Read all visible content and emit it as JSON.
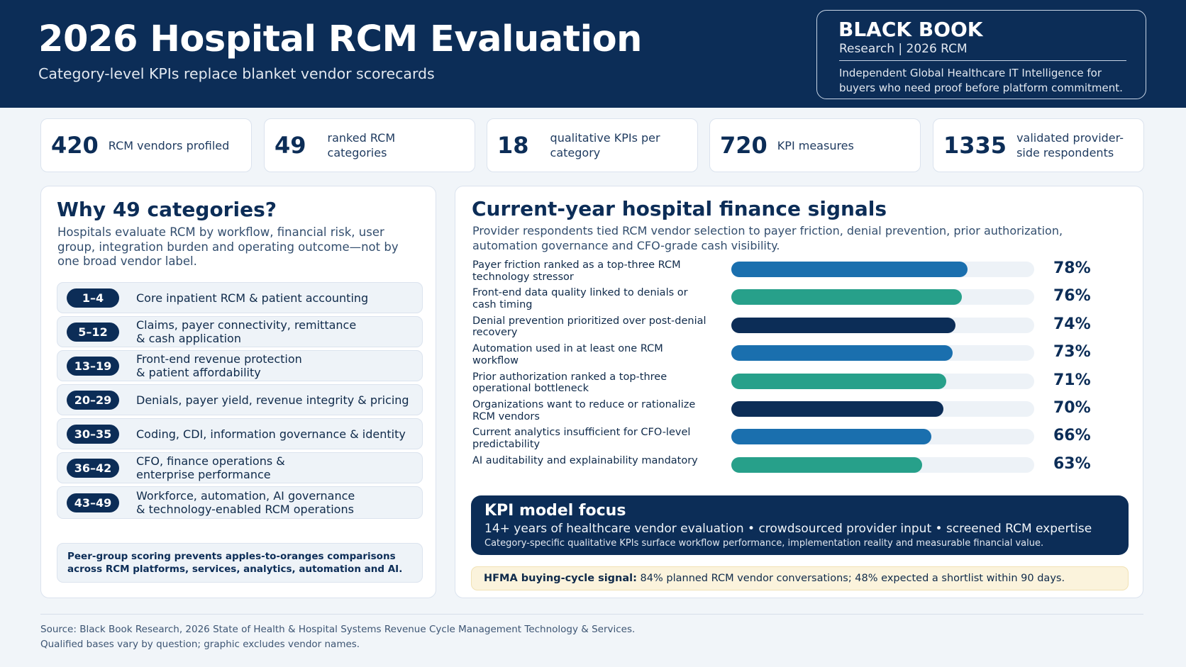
{
  "header": {
    "title": "2026 Hospital RCM Evaluation",
    "subtitle": "Category-level KPIs replace blanket vendor scorecards",
    "brand": {
      "name": "BLACK BOOK",
      "sub": "Research | 2026 RCM",
      "description": "Independent Global Healthcare IT Intelligence for buyers who need proof before platform commitment."
    }
  },
  "stats": [
    {
      "value": "420",
      "label": "RCM vendors profiled"
    },
    {
      "value": "49",
      "label": "ranked RCM categories"
    },
    {
      "value": "18",
      "label": "qualitative KPIs per category"
    },
    {
      "value": "720",
      "label": "KPI measures"
    },
    {
      "value": "1335",
      "label": "validated provider-side respondents"
    }
  ],
  "categories_panel": {
    "title": "Why 49 categories?",
    "description": "Hospitals evaluate RCM by workflow, financial risk, user group, integration burden and operating outcome—not by one broad vendor label.",
    "items": [
      {
        "range": "1–4",
        "label": "Core inpatient RCM & patient accounting"
      },
      {
        "range": "5–12",
        "label": "Claims, payer connectivity, remittance & cash application"
      },
      {
        "range": "13–19",
        "label": "Front-end revenue protection & patient affordability"
      },
      {
        "range": "20–29",
        "label": "Denials, payer yield, revenue integrity & pricing"
      },
      {
        "range": "30–35",
        "label": "Coding, CDI, information governance & identity"
      },
      {
        "range": "36–42",
        "label": "CFO, finance operations & enterprise performance"
      },
      {
        "range": "43–49",
        "label": "Workforce, automation, AI governance & technology-enabled RCM operations"
      }
    ],
    "note": "Peer-group scoring prevents apples-to-oranges comparisons across RCM platforms, services, analytics, automation and AI."
  },
  "signals_panel": {
    "title": "Current-year hospital finance signals",
    "description": "Provider respondents tied RCM vendor selection to payer friction, denial prevention, prior authorization, automation governance and CFO-grade cash visibility.",
    "kpi_title": "KPI model focus",
    "kpi_line1": "14+ years of healthcare vendor evaluation • crowdsourced provider input • screened RCM expertise",
    "kpi_line2": "Category-specific qualitative KPIs surface workflow performance, implementation reality and measurable financial value.",
    "hfma_label": "HFMA buying-cycle signal:",
    "hfma_text": " 84% planned RCM vendor conversations; 48% expected a shortlist within 90 days."
  },
  "chart_data": {
    "type": "bar",
    "orientation": "horizontal",
    "title": "Current-year hospital finance signals",
    "categories": [
      "Payer friction ranked as a top-three RCM technology stressor",
      "Front-end data quality linked to denials or cash timing",
      "Denial prevention prioritized over post-denial recovery",
      "Automation used in at least one RCM workflow",
      "Prior authorization ranked a top-three operational bottleneck",
      "Organizations want to reduce or rationalize RCM vendors",
      "Current analytics insufficient for CFO-level predictability",
      "AI auditability and explainability mandatory"
    ],
    "values": [
      78,
      76,
      74,
      73,
      71,
      70,
      66,
      63
    ],
    "value_labels": [
      "78%",
      "76%",
      "74%",
      "73%",
      "71%",
      "70%",
      "66%",
      "63%"
    ],
    "bar_colors": [
      "#1a6fae",
      "#27a08a",
      "#0c2d57",
      "#1a6fae",
      "#27a08a",
      "#0c2d57",
      "#1a6fae",
      "#27a08a"
    ],
    "xlim": [
      0,
      100
    ],
    "grid": false,
    "legend": "none"
  },
  "footer": {
    "source": "Source: Black Book Research, 2026 State of Health & Hospital Systems Revenue Cycle Management Technology & Services.",
    "note": "Qualified bases vary by question; graphic excludes vendor names."
  }
}
